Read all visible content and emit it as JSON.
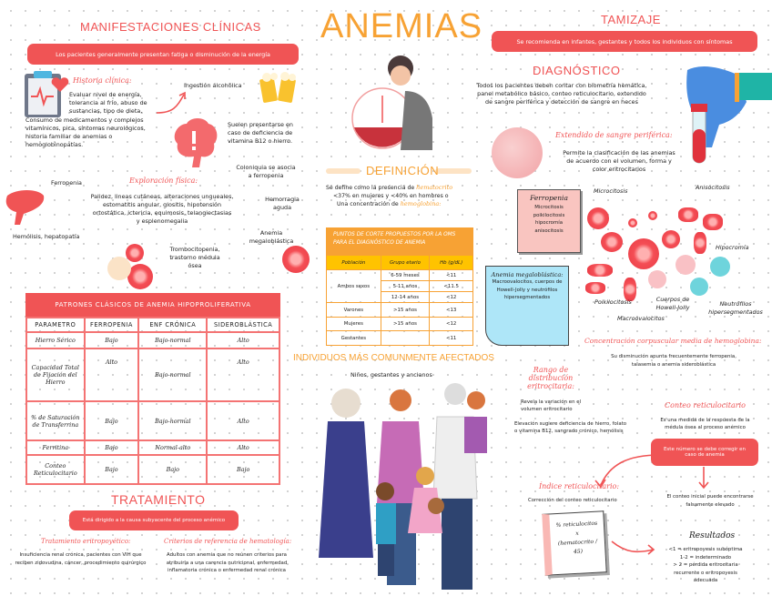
{
  "title": "ANEMIAS",
  "manif": {
    "title": "MANIFESTACIONES CLÍNICAS",
    "banner": "Los pacientes generalmente presentan fatiga o disminución de la energía",
    "historia_title": "Historia clínica:",
    "historia_lines": [
      "Evaluar nivel de energía,",
      "tolerancia al frío, abuso de",
      "sustancias, tipo de dieta,",
      "Consumo de medicamentos y complejos",
      "vitamínicos, pica, síntomas neurológicos,",
      "historia familiar de anemias o",
      "hemoglobinopatías."
    ],
    "ingestion": "Ingestión alcohólica",
    "deficiencia": [
      "Suelen presentarse en",
      "caso de deficiencia de",
      "vitamina B12 o hierro."
    ],
    "explor_title": "Exploración física:",
    "explor_lines": [
      "Palidez, lineas cutáneas, alteraciones ungueales,",
      "estomatitis angular, glositis, hipotensión",
      "ortostática, ictericia, equimosis, telangiectasias",
      "y esplenomegalia"
    ],
    "coloniquia": [
      "Coloniquia se asocia",
      "a ferropenia"
    ],
    "ferropenia": "Ferropenia",
    "hemorragia": [
      "Hemorragia",
      "aguda"
    ],
    "megalo": [
      "Anemia",
      "megaloblástica"
    ],
    "hemolisis": "Hemólisis, hepatopatía",
    "tromb": [
      "Trombocitopenia,",
      "trastorno médula",
      "ósea"
    ]
  },
  "patrones": {
    "title": "PATRONES CLÁSICOS DE ANEMIA HIPOPROLIFERATIVA",
    "headers": [
      "PARAMETRO",
      "FERROPENIA",
      "ENF CRÓNICA",
      "SIDEROBLÁSTICA"
    ],
    "rows": [
      [
        "Hierro Sérico",
        "Bajo",
        "Bajo-normal",
        "Alto"
      ],
      [
        "Capacidad Total de Fijación del Hierro",
        "Alto",
        "Bajo-normal",
        "Alto"
      ],
      [
        "% de Saturación de Transferrina",
        "Bajo",
        "Bajo-normal",
        "Alto"
      ],
      [
        "Ferritina",
        "Bajo",
        "Normal-alto",
        "Alto"
      ],
      [
        "Conteo Reticulocitario",
        "Bajo",
        "Bajo",
        "Bajo"
      ]
    ]
  },
  "tratamiento": {
    "title": "TRATAMIENTO",
    "banner": "Está dirigido a la causa subyacente del proceso anémico",
    "epo_title": "Tratamiento eritropoyético:",
    "epo_text": "Insuficiencia renal crónica, pacientes con VIH que reciben zidovudina, cáncer, procedimiento quirúrgico",
    "ref_title": "Criterios de referencia de hematología:",
    "ref_text": "Adultos con anemia que no reúnen criterios para atribuirla a una carencia nutricional, enfermedad inflamatoria crónica o enfermedad renal crónica"
  },
  "definicion": {
    "title": "DEFINICIÓN",
    "l1a": "Se define como la presencia de ",
    "l1b": "hematocrito",
    "l2": "<37% en mujeres y <40% en hombres o",
    "l3a": "Una concentración de ",
    "l3b": "hemoglobina:",
    "table_title": "PUNTOS DE CORTE PROPUESTOS POR LA OMS PARA EL DIAGNÓSTICO DE ANEMIA",
    "headers": [
      "Población",
      "Grupo etario",
      "Hb (g/dL)"
    ],
    "rows": [
      [
        "Ambos sexos",
        "6-59 meses",
        "<11"
      ],
      [
        "",
        "5-11 años",
        "<11.5"
      ],
      [
        "",
        "12-14 años",
        "<12"
      ],
      [
        "Varones",
        ">15 años",
        "<13"
      ],
      [
        "Mujeres",
        ">15 años",
        "<12"
      ],
      [
        "Gestantes",
        "",
        "<11"
      ]
    ]
  },
  "afectados": {
    "title": "INDIVIDUOS MÁS COMUNMENTE AFECTADOS",
    "text": "Niños, gestantes y ancianos"
  },
  "tamizaje": {
    "title": "TAMIZAJE",
    "banner": "Se recomienda en infantes, gestantes y todos los individuos con síntomas"
  },
  "diagnostico": {
    "title": "DIAGNÓSTICO",
    "text": [
      "Todos los pacientes deben contar con biometría hemática,",
      "panel metabólico básico, conteo reticulocitario, extendido",
      "de sangre periférica y detección de sangre en heces"
    ],
    "ext_title": "Extendido de sangre periférica:",
    "ext_text": [
      "Permite la clasificación de las anemias",
      "de acuerdo con el volumen, forma y",
      "color eritrocitarios"
    ],
    "ferro_title": "Ferropenia",
    "ferro_items": [
      "Microcitosis",
      "poikilocitosis",
      "hipocromía",
      "anisocitosis"
    ],
    "mega_title": "Anemia megaloblástica:",
    "mega_text": "Macroovalocitos, cuerpos de Howell-Jolly y neutrófilos hipersegmentados",
    "cell_labels": [
      "Microcitosis",
      "Anisocitosis",
      "Hipocromía",
      "Poikilocitosis",
      "Cuerpos de Howell-Jolly",
      "Macroovalocitos",
      "Neutrófilos hipersegmentados"
    ],
    "ccmh_title": "Concentración corpuscular media de hemoglobina:",
    "ccmh_text": [
      "Su disminución apunta frecuentemente ferropenia,",
      "talasemia o anemia sideroblástica"
    ],
    "rde_title": [
      "Rango de distribución",
      "eritrocitaria:"
    ],
    "rde_t1": [
      "Revela la variación en el",
      "volumen eritrocitario"
    ],
    "rde_t2": [
      "Elevación sugiere deficiencia de hierro, folato",
      "o vitamina B12, sangrado crónico, hemólisis"
    ],
    "conteo_title": "Conteo reticulocitario",
    "conteo_text": [
      "Es una medida de la respuesta de la",
      "médula ósea al proceso anémico"
    ],
    "conteo_box": "Este número se debe corregir en caso de anemia",
    "conteo_note": [
      "El conteo inicial puede encontrarse",
      "falsamente elevado"
    ],
    "indice_title": "Índice reticulocitario:",
    "indice_text": "Corrección del conteo reticulocitario",
    "formula": [
      "% reticulocitos",
      "x",
      "(hematocrito /",
      "45)"
    ],
    "res_title": "Resultados",
    "res": [
      "<1 = eritropoyesis subóptima",
      "1-2 = indeterminado",
      "> 2 = pérdida eritrocitaria",
      "recurrente o eritropoyesis",
      "adecuada"
    ]
  },
  "colors": {
    "red": "#f05455",
    "orange": "#f7a234",
    "yellow": "#ffc300",
    "blue_note": "#aee6f8",
    "pink_note": "#f9c5c0"
  }
}
